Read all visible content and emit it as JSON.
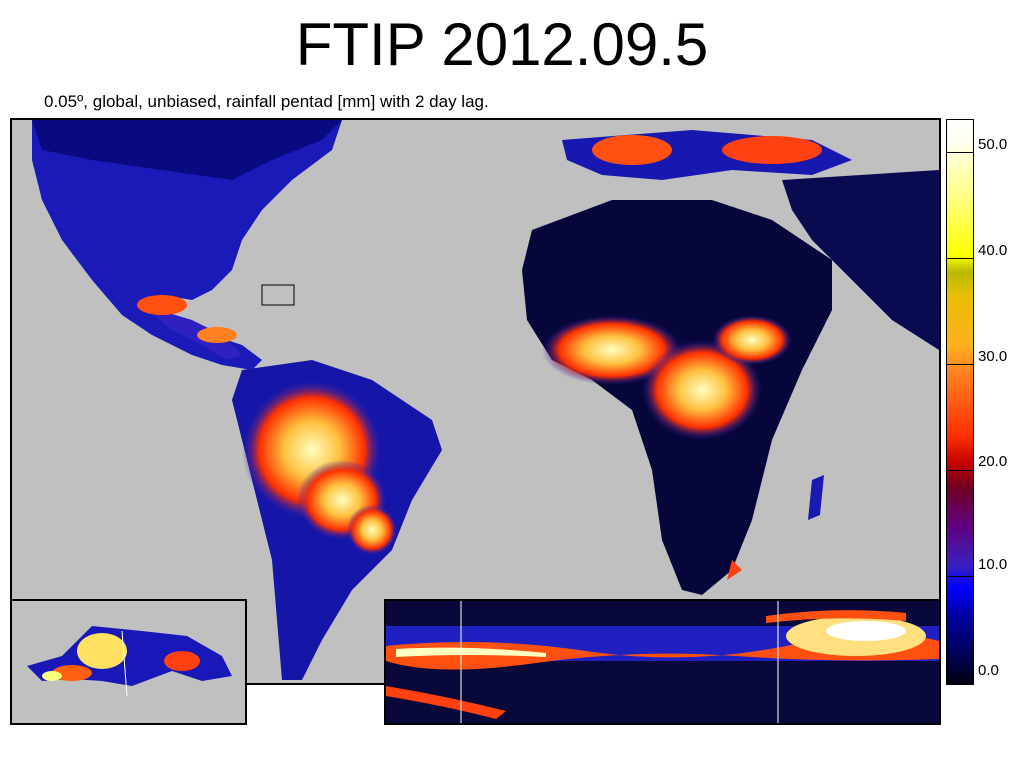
{
  "title": "FTIP 2012.09.5",
  "subtitle": "0.05º, global, unbiased, rainfall pentad [mm] with 2 day lag.",
  "colorbar": {
    "ticks": [
      "50.0",
      "40.0",
      "30.0",
      "20.0",
      "10.0",
      "0.0"
    ]
  },
  "colors": {
    "ocean": "#c0c0c0",
    "low": "#000040",
    "mid": "#0000ff",
    "high": "#ff3000",
    "peak": "#ffff80"
  }
}
